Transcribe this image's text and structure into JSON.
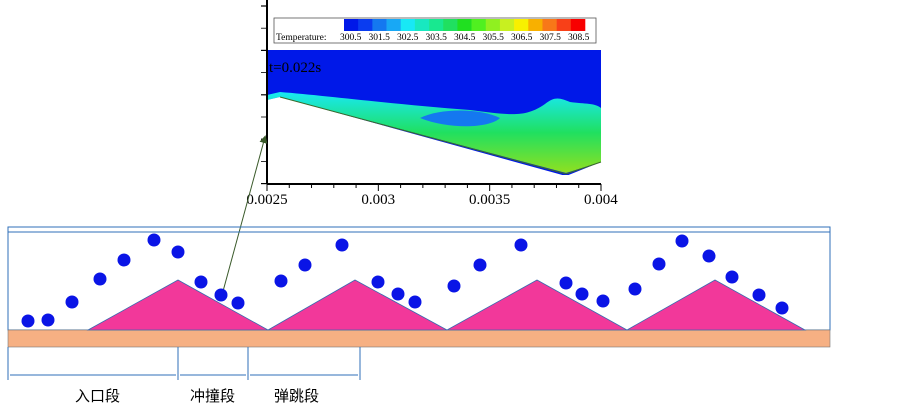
{
  "plot": {
    "legend_title": "Temperature:",
    "legend_values": [
      "300.5",
      "301.5",
      "302.5",
      "303.5",
      "304.5",
      "305.5",
      "306.5",
      "307.5",
      "308.5"
    ],
    "legend_colors": [
      "#0018e8",
      "#0a3cf0",
      "#1478f0",
      "#18a8f5",
      "#18e8f5",
      "#18e8c0",
      "#18e890",
      "#20e060",
      "#20e020",
      "#50f020",
      "#90f020",
      "#c8f020",
      "#f8f000",
      "#f8b000",
      "#f87818",
      "#f84018",
      "#f80000"
    ],
    "time_label": "t=0.022s",
    "x_ticks": [
      "0.0025",
      "0.003",
      "0.0035",
      "0.004"
    ]
  },
  "diagram": {
    "segments": [
      "入口段",
      "冲撞段",
      "弹跳段"
    ],
    "colors": {
      "triangle": "#f2389a",
      "base": "#f6b083",
      "particle": "#0a14e6",
      "border": "#2f6fb8"
    }
  }
}
